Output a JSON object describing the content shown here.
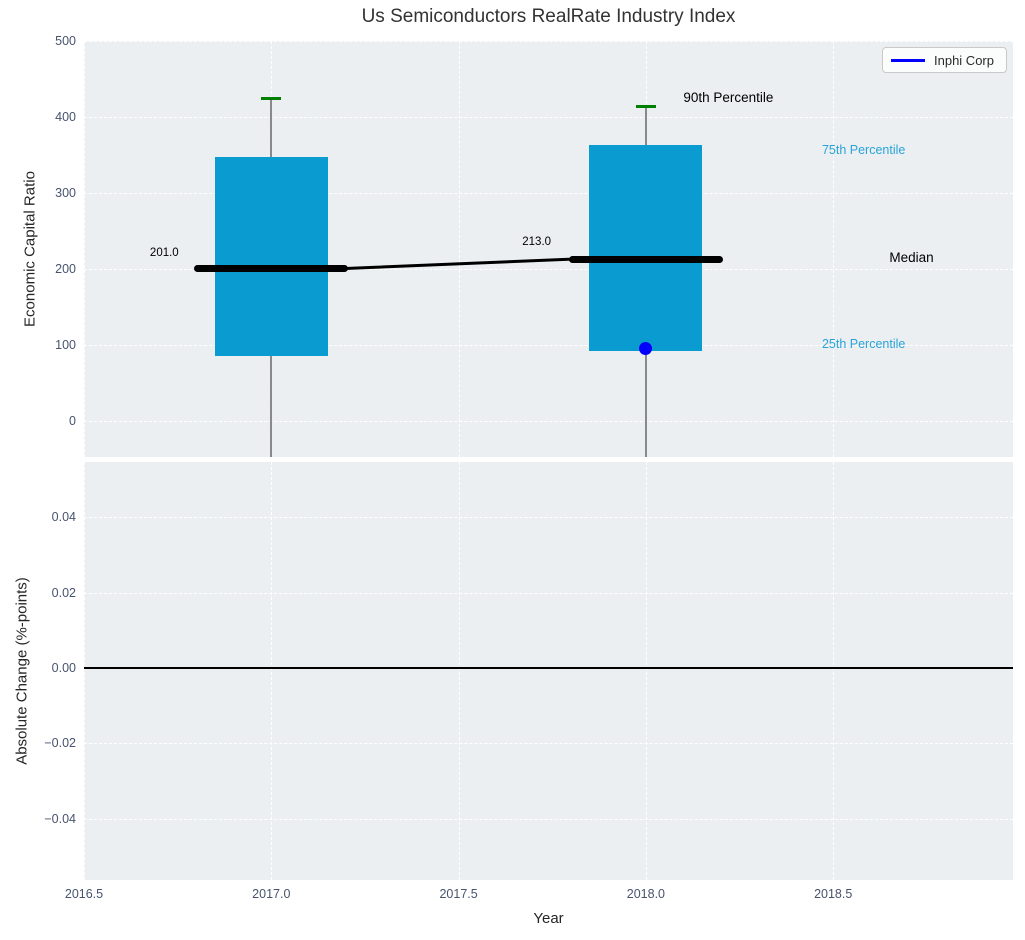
{
  "figure": {
    "title": "Us Semiconductors RealRate Industry Index"
  },
  "legend": {
    "label": "Inphi Corp",
    "line_color": "#0000ff",
    "position": "upper right"
  },
  "colors": {
    "axes_background": "#eceff1",
    "grid": "#ffffff",
    "box_fill": "#0a9cd0",
    "percentile_label": "#29a3d9",
    "tick_label": "#47536e",
    "whisker": "#6e6e6e",
    "p90_cap": "#008000",
    "company_marker": "#0000ff",
    "median_line": "#000000"
  },
  "chart_data": [
    {
      "type": "bar",
      "subtype": "percentile-box-bars",
      "name": "economic-capital-ratio-panel",
      "title": "Us Semiconductors RealRate Industry Index",
      "xlabel": "Year",
      "ylabel": "Economic Capital Ratio",
      "xlim": [
        2016.5,
        2018.98
      ],
      "ylim": [
        -47,
        500
      ],
      "grid": "white-dashed",
      "xticks": {
        "values": [
          2016.5,
          2017.0,
          2017.5,
          2018.0,
          2018.5
        ],
        "labels": [
          "2016.5",
          "2017.0",
          "2017.5",
          "2018.0",
          "2018.5"
        ]
      },
      "yticks": {
        "values": [
          0,
          100,
          200,
          300,
          400,
          500
        ],
        "labels": [
          "0",
          "100",
          "200",
          "300",
          "400",
          "500"
        ]
      },
      "boxes": [
        {
          "x": 2017,
          "p90": 425,
          "p75": 347,
          "median": 201.0,
          "p25": 86,
          "whisker_clipped_below": true,
          "median_label": "201.0"
        },
        {
          "x": 2018,
          "p90": 414,
          "p75": 363,
          "median": 213.0,
          "p25": 92,
          "whisker_clipped_below": true,
          "median_label": "213.0"
        }
      ],
      "box_half_width_years": 0.151,
      "median_half_width_years": 0.206,
      "median_connector": {
        "from": [
          2017.206,
          201.0
        ],
        "to": [
          2017.794,
          213.0
        ]
      },
      "company_series": {
        "name": "Inphi Corp",
        "points": [
          {
            "x": 2018,
            "y": 96
          }
        ]
      },
      "annotations": [
        {
          "text": "90th Percentile",
          "x": 2018.1,
          "y": 434,
          "color": "#000000",
          "size": 13.5,
          "name": "annotation-90th-percentile"
        },
        {
          "text": "75th Percentile",
          "x": 2018.47,
          "y": 365,
          "color": "#29a3d9",
          "size": 12.5,
          "name": "annotation-75th-percentile"
        },
        {
          "text": "Median",
          "x": 2018.65,
          "y": 224,
          "color": "#000000",
          "size": 13.5,
          "name": "annotation-median"
        },
        {
          "text": "25th Percentile",
          "x": 2018.47,
          "y": 109,
          "color": "#29a3d9",
          "size": 12.5,
          "name": "annotation-25th-percentile"
        },
        {
          "text": "201.0",
          "x": 2016.676,
          "y": 229,
          "color": "#000000",
          "size": 11.5,
          "name": "annotation-median-value-2017"
        },
        {
          "text": "213.0",
          "x": 2017.67,
          "y": 243,
          "color": "#000000",
          "size": 11.5,
          "name": "annotation-median-value-2018"
        }
      ]
    },
    {
      "type": "line",
      "subtype": "empty-axes",
      "name": "absolute-change-panel",
      "xlabel": "Year",
      "ylabel": "Absolute Change (%-points)",
      "xlim": [
        2016.5,
        2018.98
      ],
      "ylim": [
        -0.0562,
        0.0546
      ],
      "grid": "white-dashed",
      "xticks": {
        "values": [
          2016.5,
          2017.0,
          2017.5,
          2018.0,
          2018.5
        ],
        "labels": [
          "2016.5",
          "2017.0",
          "2017.5",
          "2018.0",
          "2018.5"
        ]
      },
      "yticks": {
        "values": [
          0.04,
          0.02,
          0.0,
          -0.02,
          -0.04
        ],
        "labels": [
          "0.04",
          "0.02",
          "0.00",
          "−0.02",
          "−0.04"
        ]
      },
      "zero_line": 0.0,
      "series": []
    }
  ]
}
